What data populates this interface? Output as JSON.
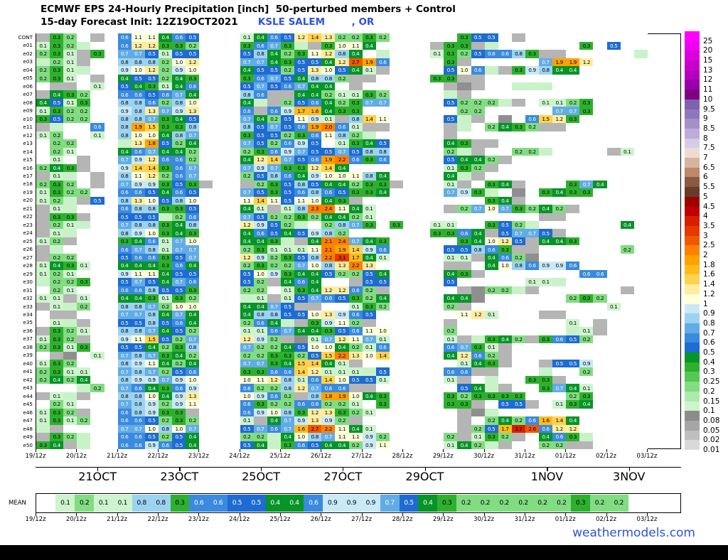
{
  "title": {
    "line1": "ECMWF EPS 24-Hourly Precipitation [inch]  50-perturbed members + Control",
    "line2_prefix": "15-day Forecast Init: 12Z19OCT2021",
    "station": "KSLE SALEM",
    "state": ", OR"
  },
  "watermark": "weathermodels.com",
  "mean_label": "MEAN",
  "chart_data": {
    "type": "heatmap",
    "title": "ECMWF EPS 24-Hourly Precipitation [inch] 50-perturbed members + Control",
    "subtitle": "15-day Forecast Init: 12Z19OCT2021 KSLE SALEM , OR",
    "units": "inch",
    "x_tick_labels": [
      "19/12z",
      "20/12z",
      "21/12z",
      "22/12z",
      "23/12z",
      "24/12z",
      "25/12z",
      "26/12z",
      "27/12z",
      "28/12z",
      "29/12z",
      "30/12z",
      "31/12z",
      "01/12z",
      "02/12z",
      "03/12z"
    ],
    "date_labels": [
      {
        "label": "21OCT",
        "day": 1.52
      },
      {
        "label": "23OCT",
        "day": 3.53
      },
      {
        "label": "25OCT",
        "day": 5.53
      },
      {
        "label": "27OCT",
        "day": 7.54
      },
      {
        "label": "29OCT",
        "day": 9.55
      },
      {
        "label": "1NOV",
        "day": 12.55
      },
      {
        "label": "3NOV",
        "day": 14.56
      }
    ],
    "scale_values": [
      "25",
      "20",
      "15",
      "13",
      "12",
      "11",
      "10",
      "9.5",
      "9",
      "8.5",
      "8",
      "7.5",
      "7",
      "6.5",
      "6",
      "5.5",
      "5",
      "4.5",
      "4",
      "3.5",
      "3",
      "2.5",
      "2",
      "1.8",
      "1.6",
      "1.4",
      "1.2",
      "1",
      "0.9",
      "0.8",
      "0.7",
      "0.6",
      "0.5",
      "0.4",
      "0.3",
      "0.25",
      "0.2",
      "0.15",
      "0.1",
      "0.08",
      "0.05",
      "0.02",
      "0.01"
    ],
    "palette": {
      "25": "#ff00ff",
      "20": "#f000f2",
      "15": "#dc00dc",
      "13": "#c800cd",
      "12": "#b400be",
      "11": "#9900ab",
      "10": "#800080",
      "9.5": "#7d62b0",
      "9": "#8f76bd",
      "8.5": "#a58fca",
      "8": "#bfabd8",
      "7.5": "#d7cbe7",
      "7": "#ecdcd4",
      "6.5": "#d8b39d",
      "6": "#bc896a",
      "5.5": "#8a5a42",
      "5": "#693c28",
      "4.5": "#9e0000",
      "4": "#bf0000",
      "3.5": "#d91e00",
      "3": "#e63900",
      "2.5": "#f05800",
      "2": "#ff8000",
      "1.8": "#ffa200",
      "1.6": "#ffbb1c",
      "1.4": "#ffd24d",
      "1.2": "#ffeda0",
      "1": "#ffffdc",
      "0.9": "#c9e9f8",
      "0.8": "#9cd3f0",
      "0.7": "#62ace6",
      "0.6": "#3a8ade",
      "0.5": "#1e6cd2",
      "0.4": "#079428",
      "0.3": "#2eb02e",
      "0.25": "#54c854",
      "0.2": "#82dc82",
      "0.15": "#abeaab",
      "0.1": "#cdf4cd",
      "0.08": "#8c8c8c",
      "0.05": "#a6a6a6",
      "0.02": "#bfbfbf",
      "0.01": "#d9d9d9"
    },
    "trace_colors": {
      "t": "#b5b5b5",
      "T": "#8f8f8f",
      "l": "#c9f2c9"
    },
    "row_labels": [
      "CONT",
      "e01",
      "e02",
      "e03",
      "e04",
      "e05",
      "e06",
      "e07",
      "e08",
      "e09",
      "e10",
      "e11",
      "e12",
      "e13",
      "e14",
      "e15",
      "e16",
      "e17",
      "e18",
      "e19",
      "e20",
      "e21",
      "e22",
      "e23",
      "e24",
      "e25",
      "e26",
      "e27",
      "e28",
      "e29",
      "e30",
      "e31",
      "e32",
      "e33",
      "e34",
      "e35",
      "e36",
      "e37",
      "e38",
      "e39",
      "e40",
      "e41",
      "e42",
      "e43",
      "e44",
      "e45",
      "e46",
      "e47",
      "e48",
      "e49",
      "e50"
    ],
    "rows": [
      "t 0.3 0.2 . t . 0.6 1.1 1.1 0.4 0.6 0.5 . . . 0.1 0.4 0.6 0.5 1.2 1.4 1.3 0.2 0.2 0.3 0.2 . . . . . 0.3 0.5 0.5 . t . . . . . . . . .",
      "0.1 0.3 0.2 l . . 0.6 1.2 1.2 0.3 0.3 0.2 . . . 0.3 0.6 0.7 0.3 l t 0.3 1.0 1.1 0.4 . . . . t 0.3 0.3 t l . . . . . . 0.3 . 0.5 . .",
      "0.2 0.3 0.1 t 0.3 . 0.7 0.7 0.5 0.1 0.5 0.5 . . . 0.5 0.8 0.4 0.2 0.3 1.1 1.2 0.8 0.4 . l . . . 0.1 0.3 0.2 0.5 0.6 0.6 0.8 0.3 t t . . . . . l",
      "l 0.2 0.1 t . . 0.8 0.8 0.8 0.2 1.0 1.2 . . . 0.7 0.7 0.4 0.3 0.5 0.5 0.4 1.2 2.7 1.9 0.6 . . . . 0.3 t . . . . . 0.7 1.9 1.9 1.2 . . . .",
      "0.2 0.3 0.1 l . . 0.9 1.0 1.2 0.2 0.9 1.0 . . . 0.4 0.5 0.5 0.2 0.5 1.3 1.0 0.5 0.4 0.1 t . . . . 0.5 1.0 0.6 l t 0.3 0.9 0.8 0.4 0.4 . . . . .",
      "0.2 0.3 0.1 . t . 0.4 0.5 0.5 0.2 0.4 0.3 . . . 0.3 0.6 0.7 0.5 0.4 0.8 0.8 0.2 t t . . . . 0.3 0.3 t t . . . . . . . . . . . .",
      ". t t . 0.1 . 0.5 0.4 0.3 0.1 0.4 0.6 . . . 0.5 0.7 0.5 0.6 0.7 0.4 0.4 . t . . . . . . t T t . . l l l . . . . . . .",
      "t 0.4 0.3 0.2 . . 0.6 0.6 0.5 0.6 0.7 0.4 . . . 0.8 0.6 t t 0.4 0.4 0.2 0.1 0.1 0.3 0.2 . . . . l t . . . . . . . . . . . . .",
      "0.4 0.5 0.1 0.3 . . 0.8 0.8 0.6 0.2 0.8 1.0 . . . 0.4 l t 0.2 0.5 0.6 0.4 0.2 0.3 0.7 0.7 . . . . 0.5 0.2 0.2 0.2 l t . 0.1 0.1 0.2 0.3 . . . .",
      "0.1 0.3 0.2 0.2 . . 0.9 0.8 1.3 0.7 0.9 1.3 . . . 0.6 t 0.6 0.9 1.7 1.6 0.4 0.3 0.3 . . . . . . . 0.2 0.2 . . . . . 0.7 0.7 0.3 . . . .",
      "0.3 0.5 0.2 0.2 . . 0.8 0.8 0.7 0.3 0.4 0.5 . . . 0.7 0.4 0.2 0.5 1.1 0.9 0.1 t 0.8 1.4 1.1 . . . . 0.5 l t . T . 0.6 1.5 1.2 0.3 . . . . .",
      "t l . . 0.6 . 0.8 1.9 1.5 0.3 0.3 0.8 . . . 0.8 0.5 0.7 0.5 0.6 1.9 2.0 0.6 0.1 t t . . . . t l . 0.2 0.4 0.3 0.2 t t . . . . . .",
      "0.1 0.2 . . 0.1 . 0.8 1.0 1.0 0.4 0.8 0.7 . . . 0.3 0.5 0.5 0.2 0.3 0.6 1.1 0.8 0.2 l . . . . . t . . . . . . . . . . . . . .",
      ". 0.2 0.2 . . . l 1.3 1.8 0.5 0.2 0.4 . . . 0.7 0.5 0.2 0.6 0.9 0.5 . 0.1 0.3 0.4 0.5 . . . . 0.4 0.3 t t . . . . . . . . . . .",
      ". 0.2 0.1 . . . 0.4 0.6 0.7 0.4 0.4 0.2 . . . 0.2 0.3 0.6 0.9 0.7 0.5 0.5 0.7 0.5 0.8 0.8 . . . . 0.2 l t . . 0.2 0.2 l . . . . t 0.1 .",
      ". 0.1 . t . . 0.7 0.9 1.2 0.6 0.6 0.2 . . . 0.4 1.2 1.4 0.7 0.5 0.6 1.9 2.2 0.6 0.3 0.6 . . . . 0.5 0.4 0.4 0.2 t . . . . . . . . . .",
      "0.2 0.4 0.3 t . . 0.9 1.4 1.4 0.3 0.6 0.7 . . . 0.7 0.9 0.7 0.3 0.3 1.2 1.4 0.4 . . . . . . . 0.1 0.3 0.2 t . . . . . . . . . . .",
      "t 0.1 l . t . 0.8 1.1 1.2 0.2 0.6 0.7 . . . 0.2 0.5 0.8 0.6 0.4 0.9 1.0 1.0 1.1 0.8 0.4 . . . . 0.4 l t . . . . . . . . . . . .",
      "0.2 0.3 0.2 . t . 0.7 0.9 0.9 0.3 0.5 0.3 t . . t 0.2 0.3 0.5 0.8 0.5 0.4 0.4 0.2 0.3 0.3 t . . . 0.1 t . 0.3 0.4 t . . . 0.3 0.7 0.4 . . .",
      "0.1 0.3 0.2 0.2 . . 0.6 0.6 0.5 0.4 0.6 0.5 . . . 0.7 0.5 0.3 0.5 0.6 0.8 0.6 0.5 0.3 0.3 0.4 . . . . 0.7 0.9 0.3 l . T . 0.3 0.4 0.3 0.3 . . . .",
      "0.1 0.2 l t 0.5 . 0.8 1.3 1.0 0.5 0.8 1.0 . . . 1.1 1.4 1.1 0.5 1.1 1.0 0.4 0.3 t . . . . . . . . . 0.3 0.4 t . . . . . . . . .",
      "t 0.1 l . . . 0.6 0.8 0.8 0.3 0.3 0.5 . . . 0.4 0.1 t 0.1 0.8 2.3 2.4 1.1 0.4 0.1 . . . . . t 0.2 0.7 1.0 0.7 0.3 0.2 0.4 0.2 t . . . . .",
      "t 0.3 0.3 t . . 0.5 0.5 0.5 l 0.2 0.6 . . . 0.7 0.5 0.2 0.2 0.3 0.2 0.4 0.4 0.2 0.1 . . . . . . . . . . . . t t . . . . . .",
      "t 0.2 0.1 l . . 0.7 0.8 0.8 0.3 0.4 0.8 . . . 1.2 0.9 0.5 0.2 l . 0.2 0.8 0.7 0.3 . 0.3 . . 0.1 0.1 . . 0.3 0.5 0.2 l . . . . . . 0.4 .",
      "t 0.1 l . . . 0.8 0.9 1.0 0.3 0.4 0.3 . . . 0.4 0.6 0.5 0.4 0.5 0.9 0.8 0.2 . . . . . . 0.3 0.3 0.6 0.4 t 0.5 0.7 0.7 0.5 t . . . . . .",
      "0.1 0.2 t . . . 0.3 0.4 0.6 0.1 0.7 1.0 . . . 0.4 0.4 0.3 l t 0.4 2.1 2.4 0.7 0.4 0.3 . . . . . 0.3 0.4 1.0 1.2 0.5 t 0.4 0.4 0.3 . . . . .",
      "t l . . . . 0.6 0.7 0.8 0.1 0.7 0.7 . . . 0.2 0.3 0.1 0.1 0.1 1.1 2.1 1.9 1.4 0.9 0.6 . . . . 0.5 0.5 0.8 0.6 0.3 t t . . . . . . 0.2 .",
      "t 0.2 0.2 . . . 0.5 0.6 0.6 0.3 0.5 0.7 . . . 1.2 0.9 0.2 0.3 0.5 0.8 2.2 3.1 1.7 0.4 0.1 . . . . 0.1 0.1 t 0.4 0.6 0.2 T . . . . . . . .",
      "0.1 0.4 0.3 0.1 . . 0.4 0.4 0.4 0.3 0.6 0.4 . . . 0.2 0.3 0.2 0.2 0.7 1.0 0.8 1.3 2.2 1.3 . . . . . t t . 0.4 1.0 0.8 0.6 0.9 0.9 0.6 . . . . .",
      "0.1 0.2 0.1 . . . 0.9 1.1 1.1 0.4 0.5 0.5 . . . 0.5 1.0 0.9 0.3 0.4 0.4 0.5 0.2 0.2 0.5 0.4 . . . . 0.4 0.3 t . . . . . . . 0.6 0.6 . . .",
      "l 0.2 0.2 0.3 . . 0.5 0.7 0.5 0.4 0.7 0.6 . . . 0.5 0.2 t 0.4 0.6 0.4 . . t 0.5 0.5 . . . . 0.5 . . . . . 0.1 0.1 l . . . . . .",
      ". 0.2 0.1 . . . 0.6 0.6 0.8 0.5 0.5 0.3 . . . 0.2 0.2 . 0.1 0.3 0.4 1.2 1.2 0.6 0.2 t . . . . . t T 0.2 0.2 l t . . . . . . t .",
      "0.1 0.1 t 0.1 . . 0.4 0.4 0.3 0.1 0.3 0.2 . . . l 0.1 t 0.1 0.5 0.7 0.6 0.5 0.3 0.2 0.4 . . . . 0.4 0.4 T . . . . . . 0.2 0.3 0.2 . . .",
      "t 0.1 l 0.2 . . 0.8 0.8 0.7 0.2 1.0 1.0 . . . 0.4 0.4 0.7 0.5 t t . . 0.1 0.3 0.2 . . . . 0.2 t . . . . . . . . . . 0.1 . .",
      ". t t . . . 0.7 0.7 0.8 0.4 0.7 0.4 . . . 0.4 0.8 0.8 0.5 0.5 1.0 1.3 0.9 0.6 0.5 . . . . . . 1.1 1.2 0.1 . . . t t . . . . . .",
      ". 0.1 l t . . 0.5 0.5 0.8 0.5 0.6 0.4 . . . 0.2 0.6 0.4 l t 0.3 0.9 1.1 0.2 t . . . . . t . . . . . . . . 0.1 . t . . .",
      "t 0.3 0.2 0.1 . . 0.8 0.8 0.7 0.4 0.5 0.2 . . . 0.1 0.1 0.6 0.7 0.4 0.4 0.3 0.5 0.6 1.1 1.0 . . . . 0.2 . . . . . . . . l 0.1 t . . .",
      "0.1 0.3 0.2 t . . 0.9 1.1 1.5 0.5 0.2 0.7 . . . 1.2 0.9 0.2 t T 0.1 0.7 1.2 1.1 0.7 0.1 . . . . 0.1 t l 0.3 0.4 0.2 t 0.3 0.6 0.5 0.2 . . . .",
      "0.2 0.3 0.1 0.3 . . 0.5 0.5 0.4 0.2 0.3 0.8 . . . 0.7 0.2 0.2 0.4 0.5 1.0 1.0 0.4 0.2 0.1 0.6 . . . . 0.6 0.7 0.3 0.1 t . . . . . . . . . .",
      ". t T . 0.1 . 0.7 0.8 0.7 0.3 0.4 0.2 . . . 0.2 0.2 0.3 0.3 0.2 0.5 1.5 2.2 1.3 1.0 1.4 . . . . 0.4 1.2 0.6 0.2 t . . . . . . . . . .",
      "0.1 0.3 0.2 . . . 0.8 0.9 1.1 0.4 0.2 0.4 . . . 0.7 0.7 0.3 0.4 1.5 1.4 0.4 0.1 t . . . . . . . 0.1 0.4 0.3 t . . t 0.5 0.5 0.9 . . . .",
      "0.2 0.3 0.1 0.1 . . 0.7 0.8 0.7 0.2 0.5 0.6 . . . 0.3 0.3 0.6 0.6 1.4 1.2 0.1 0.1 0.1 l 0.5 . . . . 0.6 0.6 t t . . . l . . 0.2 . . . .",
      "0.2 0.4 0.2 0.4 . . 0.8 0.9 0.9 0.7 0.9 1.0 . . . 1.0 1.1 1.2 0.8 0.1 0.6 1.4 1.0 0.5 0.5 0.1 . . . . 0.1 t . l . . 0.3 0.3 t . . . . . .",
      ". . . l 0.2 . 0.7 0.6 0.4 0.3 0.6 0.9 . . . 0.6 0.2 0.2 0.8 1.2 0.7 0.6 0.6 t t . . . . . . 0.5 0.4 l t . . 0.3 0.7 0.4 0.1 . . . .",
      "t 0.1 l t . . 0.8 0.8 1.0 0.4 0.9 1.3 . . . 1.0 0.9 0.6 0.2 t 0.8 1.8 1.9 1.0 0.4 0.3 . . . . 0.3 0.2 0.3 0.3 0.3 0.3 . . . 0.2 0.3 . . . .",
      ". 0.2 0.1 . . . 0.7 0.8 0.9 0.2 0.9 1.1 . . . 0.6 0.3 0.2 0.2 0.6 0.6 0.2 0.2 0.1 . 0.3 . . . . 0.3 0.3 t . 0.5 0.5 t . 0.1 0.3 0.4 . . . .",
      "0.1 0.3 0.2 t . . 0.6 0.8 0.9 0.3 0.3 t . . . 0.6 0.9 1.0 0.8 0.3 1.2 1.3 0.3 0.2 0.1 . . . . . . t T l . . . . . . . . . . .",
      "0.1 0.3 0.1 0.2 . . 0.6 0.6 0.5 0.2 0.3 0.2 . . . 0.1 t 0.4 0.7 0.9 1.3 0.9 0.2 t . . . . . . . t . 0.2 0.4 0.2 0.6 1.6 1.4 0.4 . . . . .",
      "l t . . . . 0.7 0.7 1.0 0.8 1.0 0.7 . . . 0.5 0.7 0.6 0.7 1.6 2.7 2.2 1.1 0.4 0.1 . . . . . . t 0.2 0.5 1.7 3.7 2.6 0.6 1.2 1.2 . . . . .",
      "t 0.3 0.2 l . . 0.6 0.6 0.5 0.2 0.5 0.4 . . . 0.2 0.2 l 0.4 1.0 0.8 0.7 1.1 1.1 0.9 0.2 . . . . 0.2 t 0.1 0.3 0.2 t . 0.4 0.6 0.3 l . . . .",
      "0.3 0.4 t l . . 0.6 0.6 0.9 0.6 0.5 0.4 . . . 0.5 0.4 l 0.3 0.6 0.5 0.4 0.4 0.2 0.9 1.1 . . . . 0.1 0.4 0.2 l t . . 0.2 0.2 t t . . . ."
    ],
    "mean_cells": ". 0.1 0.2 0.1 0.1 0.8 0.8 0.3 0.6 0.6 0.5 0.5 0.4 0.4 0.6 0.9 0.9 0.9 0.7 0.5 0.4 0.3 0.2 0.2 0.2 0.2 0.2 0.2 0.3 0.2 0.2 ."
  }
}
